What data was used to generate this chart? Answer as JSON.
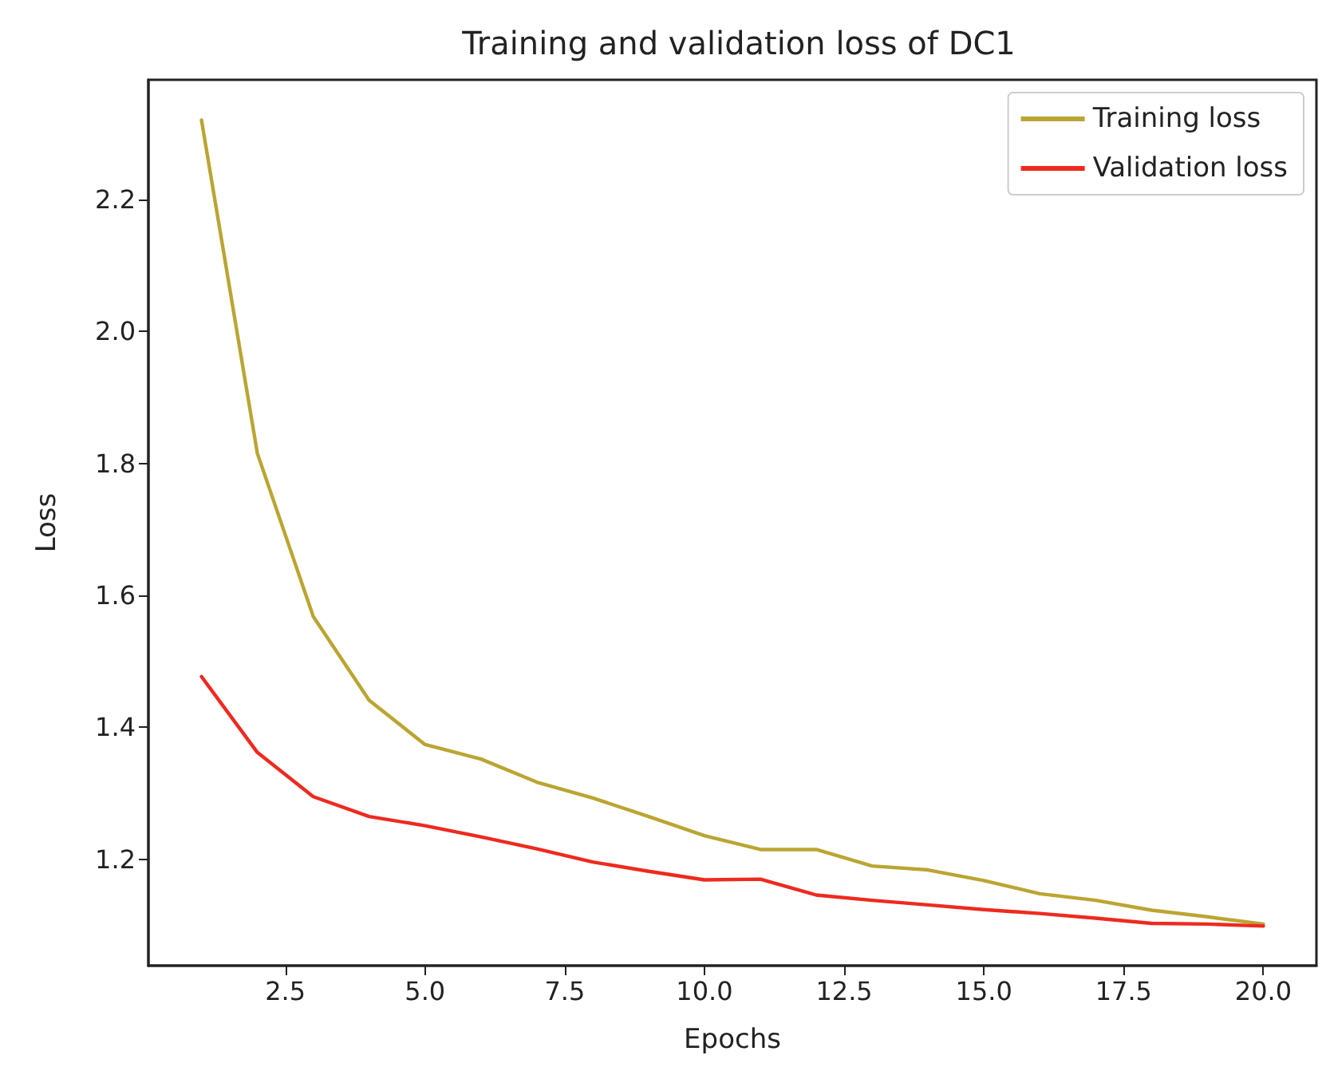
{
  "chart_data": {
    "type": "line",
    "title": "Training and validation loss of DC1",
    "xlabel": "Epochs",
    "ylabel": "Loss",
    "x": [
      1,
      2,
      3,
      4,
      5,
      6,
      7,
      8,
      9,
      10,
      11,
      12,
      13,
      14,
      15,
      16,
      17,
      18,
      19,
      20
    ],
    "series": [
      {
        "name": "Training loss",
        "color": "#bba532",
        "values": [
          2.32,
          1.815,
          1.568,
          1.441,
          1.374,
          1.352,
          1.317,
          1.293,
          1.265,
          1.236,
          1.215,
          1.215,
          1.19,
          1.184,
          1.168,
          1.148,
          1.138,
          1.123,
          1.113,
          1.102
        ]
      },
      {
        "name": "Validation loss",
        "color": "#ee2a1f",
        "values": [
          1.477,
          1.362,
          1.295,
          1.265,
          1.251,
          1.234,
          1.216,
          1.196,
          1.182,
          1.169,
          1.17,
          1.146,
          1.138,
          1.131,
          1.124,
          1.118,
          1.111,
          1.103,
          1.102,
          1.099
        ]
      }
    ],
    "xlim": [
      0.05,
      20.95
    ],
    "xticks": [
      {
        "value": 2.5,
        "label": "2.5"
      },
      {
        "value": 5,
        "label": "5.0"
      },
      {
        "value": 7.5,
        "label": "7.5"
      },
      {
        "value": 10,
        "label": "10.0"
      },
      {
        "value": 12.5,
        "label": "12.5"
      },
      {
        "value": 15,
        "label": "15.0"
      },
      {
        "value": 17.5,
        "label": "17.5"
      },
      {
        "value": 20,
        "label": "20.0"
      }
    ],
    "ylim": [
      1.039,
      2.381
    ],
    "yticks": [
      {
        "value": 1.2,
        "label": "1.2"
      },
      {
        "value": 1.4,
        "label": "1.4"
      },
      {
        "value": 1.6,
        "label": "1.6"
      },
      {
        "value": 1.8,
        "label": "1.8"
      },
      {
        "value": 2.0,
        "label": "2.0"
      },
      {
        "value": 2.2,
        "label": "2.2"
      }
    ],
    "legend": "top right",
    "grid": false,
    "marker": "none",
    "line_style": "solid"
  }
}
